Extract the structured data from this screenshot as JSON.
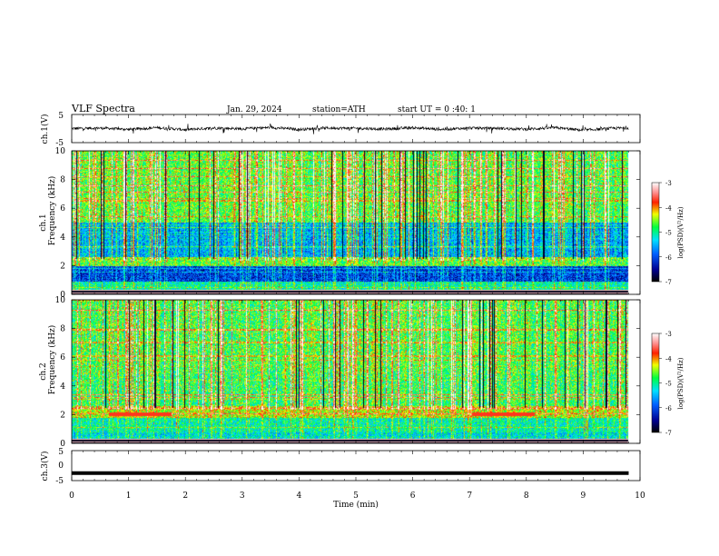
{
  "header": {
    "title": "VLF Spectra",
    "date": "Jan. 29, 2024",
    "station": "station=ATH",
    "start": "start UT = 0 :40: 1"
  },
  "colors": {
    "spectrum_low": "#000080",
    "spectrum_mid": "#00ff00",
    "spectrum_high": "#ff0000",
    "background": "#ffffff"
  },
  "chart_data": [
    {
      "type": "line",
      "name": "waveform-ch1",
      "ylabel": "ch.1(V)",
      "ylim": [
        -5,
        5
      ],
      "yticks": [
        "5",
        "-5"
      ],
      "x": [
        0,
        0.5,
        1,
        1.5,
        2,
        2.5,
        3,
        3.5,
        4,
        4.5,
        5,
        5.5,
        6,
        6.5,
        7,
        7.5,
        8,
        8.5,
        9,
        9.5,
        9.8
      ],
      "values": [
        0,
        0.2,
        -0.3,
        0.3,
        -0.4,
        0.2,
        -0.1,
        0.4,
        -0.3,
        0.2,
        0.1,
        -0.2,
        0.3,
        -0.3,
        0.2,
        0.1,
        -0.2,
        0.3,
        -0.6,
        0.1,
        0.2
      ]
    },
    {
      "type": "heatmap",
      "name": "spectrogram-ch1",
      "ylabel_top": "ch.1",
      "ylabel": "Frequency (kHz)",
      "ylim": [
        0,
        10
      ],
      "yticks": [
        "0",
        "2",
        "4",
        "6",
        "8",
        "10"
      ],
      "colorbar": {
        "label": "log(PSD)(V²/Hz)",
        "ticks": [
          "-3",
          "-4",
          "-5",
          "-6",
          "-7"
        ],
        "range": [
          -7,
          -3
        ]
      }
    },
    {
      "type": "heatmap",
      "name": "spectrogram-ch2",
      "ylabel_top": "ch.2",
      "ylabel": "Frequency (kHz)",
      "ylim": [
        0,
        10
      ],
      "yticks": [
        "0",
        "2",
        "4",
        "6",
        "8",
        "10"
      ],
      "colorbar": {
        "label": "log(PSD)(V²/Hz)",
        "ticks": [
          "-3",
          "-4",
          "-5",
          "-6",
          "-7"
        ],
        "range": [
          -7,
          -3
        ]
      }
    },
    {
      "type": "line",
      "name": "waveform-ch3",
      "ylabel": "ch.3(V)",
      "ylim": [
        -5,
        5
      ],
      "yticks": [
        "5",
        "0",
        "-5"
      ],
      "x": [
        0,
        9.8
      ],
      "values": [
        -2.5,
        -2.5
      ]
    }
  ],
  "xaxis": {
    "label": "Time (min)",
    "ticks": [
      "0",
      "1",
      "2",
      "3",
      "4",
      "5",
      "6",
      "7",
      "8",
      "9",
      "10"
    ],
    "range": [
      0,
      10
    ]
  }
}
